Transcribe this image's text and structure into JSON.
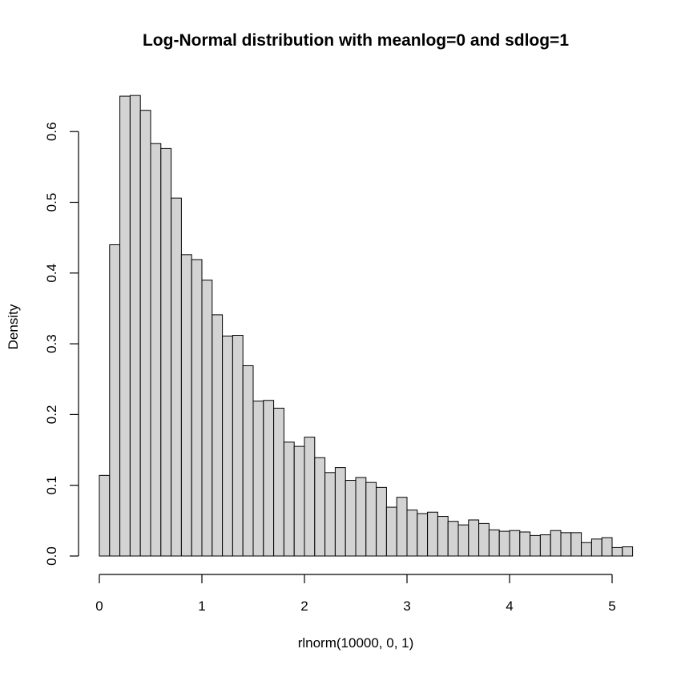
{
  "chart_data": {
    "type": "bar",
    "title": "Log-Normal distribution with meanlog=0 and sdlog=1",
    "xlabel": "rlnorm(10000, 0, 1)",
    "ylabel": "Density",
    "bin_width": 0.1,
    "bin_starts": [
      0.0,
      0.1,
      0.2,
      0.3,
      0.4,
      0.5,
      0.6,
      0.7,
      0.8,
      0.9,
      1.0,
      1.1,
      1.2,
      1.3,
      1.4,
      1.5,
      1.6,
      1.7,
      1.8,
      1.9,
      2.0,
      2.1,
      2.2,
      2.3,
      2.4,
      2.5,
      2.6,
      2.7,
      2.8,
      2.9,
      3.0,
      3.1,
      3.2,
      3.3,
      3.4,
      3.5,
      3.6,
      3.7,
      3.8,
      3.9,
      4.0,
      4.1,
      4.2,
      4.3,
      4.4,
      4.5,
      4.6,
      4.7,
      4.8,
      4.9,
      5.0,
      5.1
    ],
    "values": [
      0.114,
      0.44,
      0.65,
      0.651,
      0.63,
      0.583,
      0.576,
      0.506,
      0.426,
      0.419,
      0.39,
      0.341,
      0.311,
      0.312,
      0.269,
      0.219,
      0.22,
      0.209,
      0.161,
      0.155,
      0.168,
      0.139,
      0.118,
      0.125,
      0.107,
      0.111,
      0.104,
      0.097,
      0.069,
      0.083,
      0.065,
      0.06,
      0.062,
      0.056,
      0.049,
      0.044,
      0.051,
      0.046,
      0.037,
      0.035,
      0.036,
      0.034,
      0.029,
      0.03,
      0.036,
      0.033,
      0.033,
      0.019,
      0.024,
      0.026,
      0.012,
      0.013
    ],
    "xlim": [
      0,
      5.2
    ],
    "ylim": [
      0,
      0.651
    ],
    "x_ticks": [
      {
        "value": 0,
        "label": "0"
      },
      {
        "value": 1,
        "label": "1"
      },
      {
        "value": 2,
        "label": "2"
      },
      {
        "value": 3,
        "label": "3"
      },
      {
        "value": 4,
        "label": "4"
      },
      {
        "value": 5,
        "label": "5"
      }
    ],
    "y_ticks": [
      {
        "value": 0.0,
        "label": "0.0"
      },
      {
        "value": 0.1,
        "label": "0.1"
      },
      {
        "value": 0.2,
        "label": "0.2"
      },
      {
        "value": 0.3,
        "label": "0.3"
      },
      {
        "value": 0.4,
        "label": "0.4"
      },
      {
        "value": 0.5,
        "label": "0.5"
      },
      {
        "value": 0.6,
        "label": "0.6"
      }
    ],
    "grid": false,
    "colors": {
      "bar_fill": "#d3d3d3",
      "bar_stroke": "#000000",
      "axis": "#000000",
      "background": "#ffffff"
    }
  }
}
